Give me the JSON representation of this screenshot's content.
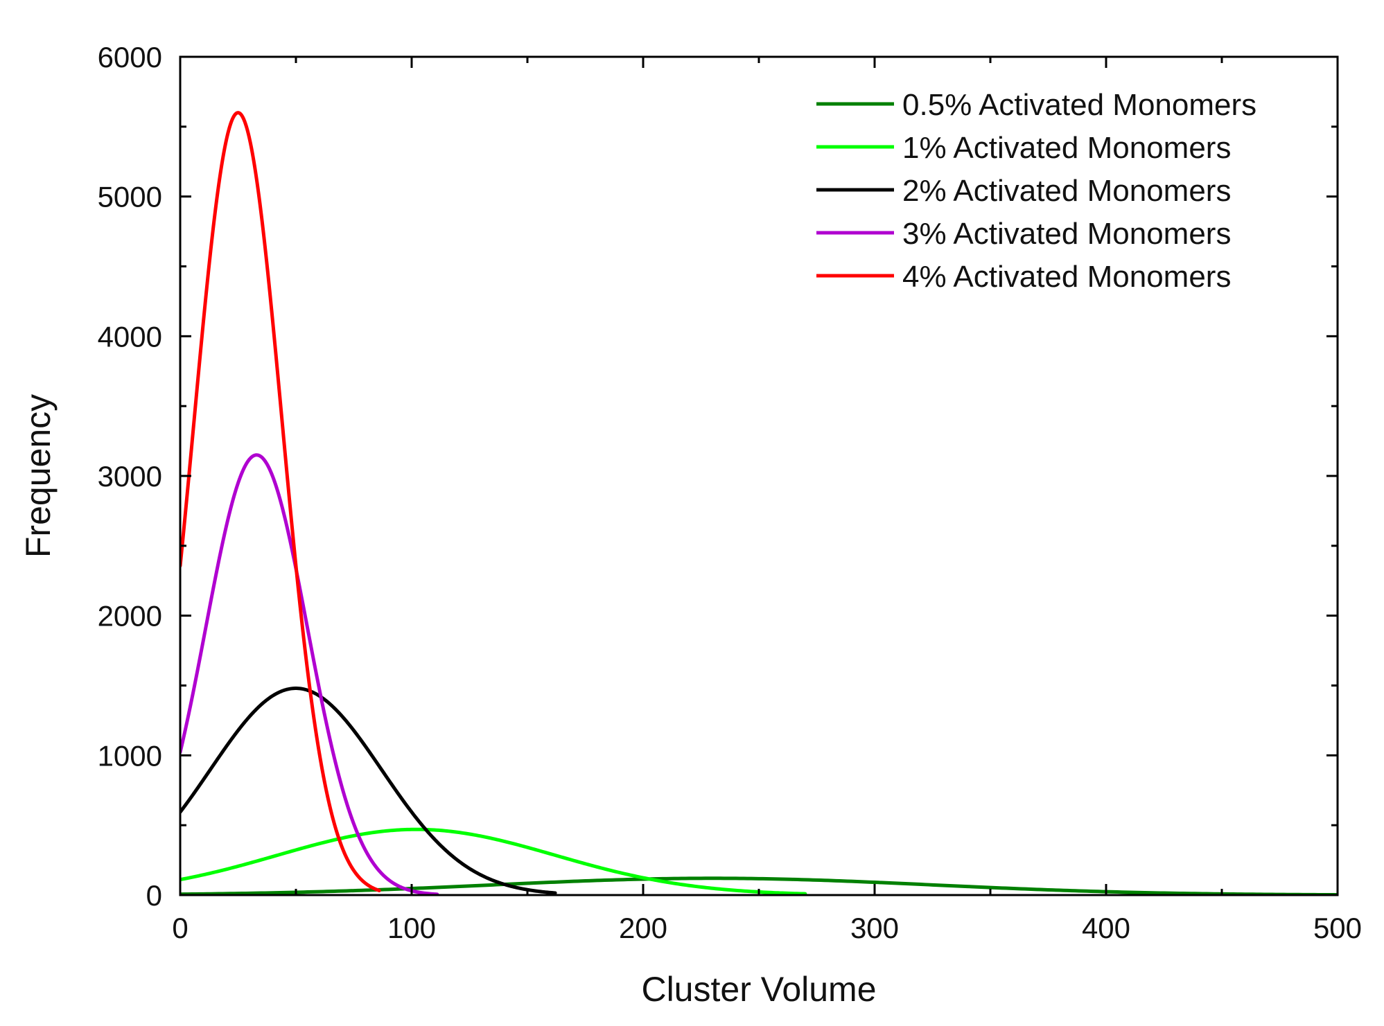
{
  "chart_data": {
    "type": "line",
    "title": "",
    "xlabel": "Cluster Volume",
    "ylabel": "Frequency",
    "xlim": [
      0,
      500
    ],
    "ylim": [
      0,
      6000
    ],
    "x_ticks": [
      0,
      100,
      200,
      300,
      400,
      500
    ],
    "y_ticks": [
      0,
      1000,
      2000,
      3000,
      4000,
      5000,
      6000
    ],
    "x_tick_labels": [
      "0",
      "100",
      "200",
      "300",
      "400",
      "500"
    ],
    "y_tick_labels": [
      "0",
      "1000",
      "2000",
      "3000",
      "4000",
      "5000",
      "6000"
    ],
    "grid": false,
    "legend_position": "top-right",
    "series": [
      {
        "name": "0.5% Activated Monomers",
        "color": "#008000",
        "curve": "gaussian",
        "peak_x": 230,
        "peak_y": 120,
        "sigma": 95,
        "x_range": [
          0,
          500
        ],
        "points": [
          [
            0,
            25
          ],
          [
            100,
            78
          ],
          [
            200,
            115
          ],
          [
            230,
            120
          ],
          [
            300,
            90
          ],
          [
            400,
            25
          ],
          [
            500,
            3
          ]
        ]
      },
      {
        "name": "1% Activated Monomers",
        "color": "#00ff00",
        "curve": "gaussian",
        "peak_x": 102,
        "peak_y": 470,
        "sigma": 60,
        "x_range": [
          0,
          270
        ],
        "points": [
          [
            0,
            130
          ],
          [
            50,
            330
          ],
          [
            102,
            470
          ],
          [
            150,
            340
          ],
          [
            200,
            120
          ],
          [
            250,
            20
          ],
          [
            270,
            8
          ]
        ]
      },
      {
        "name": "2% Activated Monomers",
        "color": "#000000",
        "curve": "gaussian",
        "peak_x": 50,
        "peak_y": 1480,
        "sigma": 37,
        "x_range": [
          0,
          162
        ],
        "points": [
          [
            0,
            520
          ],
          [
            25,
            1170
          ],
          [
            50,
            1480
          ],
          [
            75,
            1170
          ],
          [
            100,
            520
          ],
          [
            130,
            120
          ],
          [
            162,
            15
          ]
        ]
      },
      {
        "name": "3% Activated Monomers",
        "color": "#b000d0",
        "curve": "gaussian",
        "peak_x": 33,
        "peak_y": 3150,
        "sigma": 22,
        "x_range": [
          0,
          111
        ],
        "points": [
          [
            0,
            1220
          ],
          [
            15,
            2400
          ],
          [
            33,
            3150
          ],
          [
            50,
            2480
          ],
          [
            70,
            1000
          ],
          [
            90,
            220
          ],
          [
            111,
            20
          ]
        ]
      },
      {
        "name": "4% Activated Monomers",
        "color": "#ff0000",
        "curve": "gaussian",
        "peak_x": 25,
        "peak_y": 5600,
        "sigma": 19,
        "x_range": [
          0,
          86
        ],
        "points": [
          [
            0,
            2250
          ],
          [
            12,
            4400
          ],
          [
            25,
            5600
          ],
          [
            40,
            4200
          ],
          [
            55,
            1900
          ],
          [
            70,
            520
          ],
          [
            86,
            40
          ]
        ]
      }
    ]
  }
}
